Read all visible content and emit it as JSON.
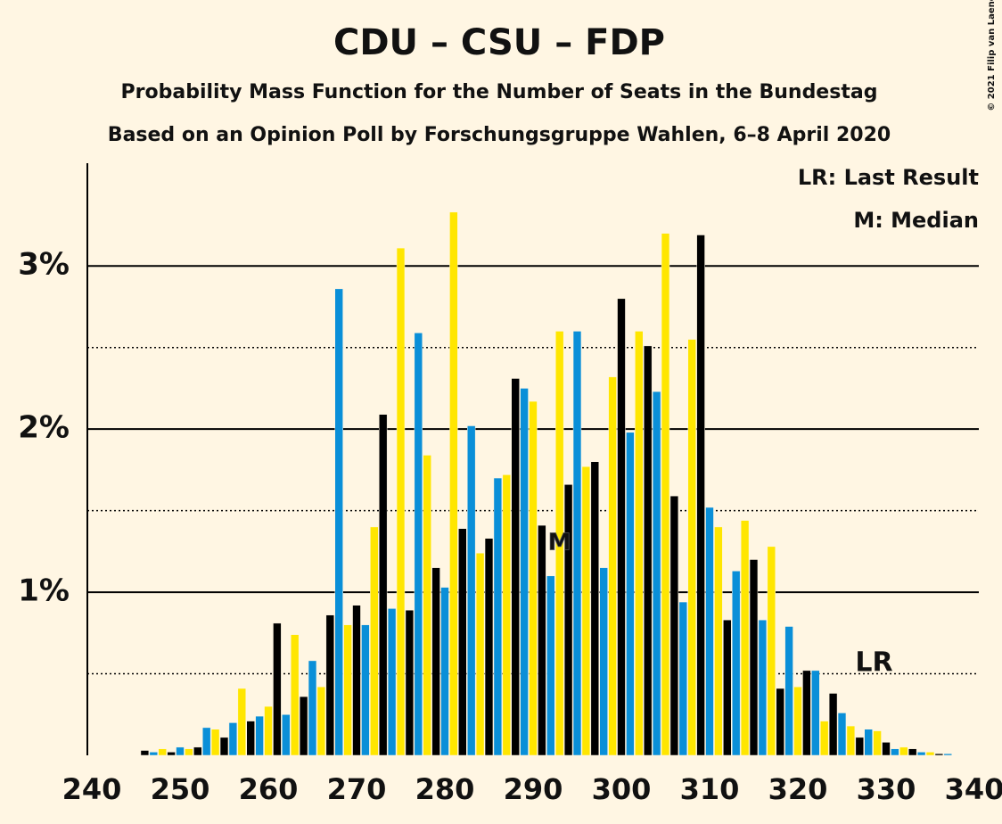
{
  "chart_data": {
    "type": "bar",
    "title": "CDU – CSU – FDP",
    "subtitle": "Probability Mass Function for the Number of Seats in the Bundestag",
    "subtitle2": "Based on an Opinion Poll by Forschungsgruppe Wahlen, 6–8 April 2020",
    "legend": [
      "LR: Last Result",
      "M: Median"
    ],
    "copyright": "© 2021 Filip van Laenen",
    "colors": [
      "#000000",
      "#0a8fd8",
      "#ffe600"
    ],
    "x": [
      240,
      241,
      242,
      243,
      244,
      245,
      246,
      247,
      248,
      249,
      250,
      251,
      252,
      253,
      254,
      255,
      256,
      257,
      258,
      259,
      260,
      261,
      262,
      263,
      264,
      265,
      266,
      267,
      268,
      269,
      270,
      271,
      272,
      273,
      274,
      275,
      276,
      277,
      278,
      279,
      280,
      281,
      282,
      283,
      284,
      285,
      286,
      287,
      288,
      289,
      290,
      291,
      292,
      293,
      294,
      295,
      296,
      297,
      298,
      299,
      300,
      301,
      302,
      303,
      304,
      305,
      306,
      307,
      308,
      309,
      310,
      311,
      312,
      313,
      314,
      315,
      316,
      317,
      318,
      319,
      320,
      321,
      322,
      323,
      324,
      325,
      326,
      327,
      328,
      329,
      330,
      331,
      332,
      333,
      334,
      335,
      336,
      337,
      338,
      339
    ],
    "values": [
      0,
      0,
      0,
      0,
      0,
      0,
      0.03,
      0.02,
      0.04,
      0.02,
      0.05,
      0.04,
      0.05,
      0.17,
      0.16,
      0.11,
      0.2,
      0.41,
      0.21,
      0.24,
      0.3,
      0.81,
      0.25,
      0.74,
      0.36,
      0.58,
      0.42,
      0.86,
      2.86,
      0.8,
      0.92,
      0.8,
      1.4,
      2.09,
      0.9,
      3.11,
      0.89,
      2.59,
      1.84,
      1.15,
      1.03,
      3.33,
      1.39,
      2.02,
      1.24,
      1.33,
      1.7,
      1.72,
      2.31,
      2.25,
      2.17,
      1.41,
      1.1,
      2.6,
      1.66,
      2.6,
      1.77,
      1.8,
      1.15,
      2.32,
      2.8,
      1.98,
      2.6,
      2.51,
      2.23,
      3.2,
      1.59,
      0.94,
      2.55,
      3.19,
      1.52,
      1.4,
      0.83,
      1.13,
      1.44,
      1.2,
      0.83,
      1.28,
      0.41,
      0.79,
      0.42,
      0.52,
      0.52,
      0.21,
      0.38,
      0.26,
      0.18,
      0.11,
      0.16,
      0.15,
      0.08,
      0.04,
      0.05,
      0.04,
      0.02,
      0.02,
      0.01,
      0.01,
      0,
      0
    ],
    "xlim": [
      240,
      340
    ],
    "xticks": [
      240,
      250,
      260,
      270,
      280,
      290,
      300,
      310,
      320,
      330,
      340
    ],
    "ylim": [
      0,
      3.63
    ],
    "yticks": [
      {
        "value": 1,
        "label": "1%"
      },
      {
        "value": 2,
        "label": "2%"
      },
      {
        "value": 3,
        "label": "3%"
      }
    ],
    "minor_gridlines": [
      0.5,
      1.5,
      2.5
    ],
    "annotations": [
      {
        "text": "M",
        "x": 293
      },
      {
        "text": "LR",
        "x": 326
      }
    ]
  }
}
